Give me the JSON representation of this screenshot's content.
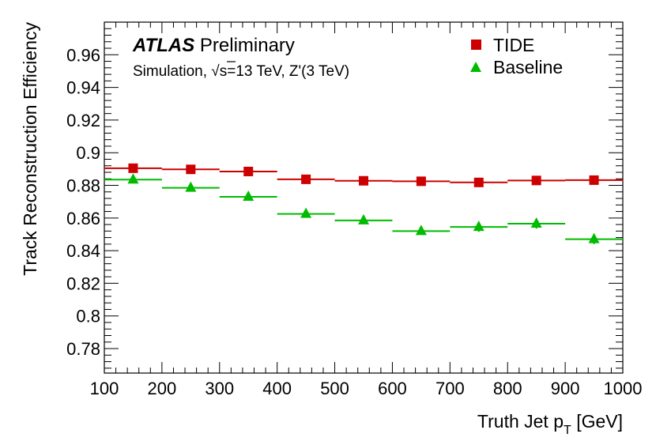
{
  "chart_data": {
    "type": "scatter",
    "xlabel": "Truth Jet p",
    "xlabel_sub": "T",
    "xlabel_unit": "[GeV]",
    "ylabel": "Track Reconstruction Efficiency",
    "xlim": [
      100,
      1000
    ],
    "ylim": [
      0.765,
      0.98
    ],
    "x_ticks": [
      100,
      200,
      300,
      400,
      500,
      600,
      700,
      800,
      900,
      1000
    ],
    "x_tick_labels": [
      "100",
      "200",
      "300",
      "400",
      "500",
      "600",
      "700",
      "800",
      "900",
      "1000"
    ],
    "y_ticks": [
      0.78,
      0.8,
      0.82,
      0.84,
      0.86,
      0.88,
      0.9,
      0.92,
      0.94,
      0.96
    ],
    "y_tick_labels": [
      "0.78",
      "0.8",
      "0.82",
      "0.84",
      "0.86",
      "0.88",
      "0.9",
      "0.92",
      "0.94",
      "0.96"
    ],
    "bins": [
      [
        100,
        200
      ],
      [
        200,
        300
      ],
      [
        300,
        400
      ],
      [
        400,
        500
      ],
      [
        500,
        600
      ],
      [
        600,
        700
      ],
      [
        700,
        800
      ],
      [
        800,
        900
      ],
      [
        900,
        1000
      ]
    ],
    "series": [
      {
        "name": "TIDE",
        "marker": "square",
        "color": "#cc0000",
        "x": [
          150,
          250,
          350,
          450,
          550,
          650,
          750,
          850,
          950
        ],
        "values": [
          0.8905,
          0.8898,
          0.8885,
          0.8837,
          0.8828,
          0.8825,
          0.8818,
          0.883,
          0.8832
        ],
        "errors": [
          0.001,
          0.001,
          0.001,
          0.001,
          0.001,
          0.001,
          0.001,
          0.001,
          0.001
        ]
      },
      {
        "name": "Baseline",
        "marker": "triangle",
        "color": "#00bb00",
        "x": [
          150,
          250,
          350,
          450,
          550,
          650,
          750,
          850,
          950
        ],
        "values": [
          0.8835,
          0.8785,
          0.873,
          0.8625,
          0.8585,
          0.852,
          0.8545,
          0.8565,
          0.847
        ],
        "errors": [
          0.002,
          0.002,
          0.002,
          0.002,
          0.002,
          0.002,
          0.003,
          0.003,
          0.003
        ]
      }
    ],
    "annotations": {
      "experiment": "ATLAS",
      "status": "Preliminary",
      "simulation_prefix": "Simulation, ",
      "sqrt_symbol": "√",
      "simulation_s": "s",
      "simulation_rest": "=13 TeV, Z'(3 TeV)"
    },
    "legend": {
      "position": "top-right",
      "entries": [
        "TIDE",
        "Baseline"
      ]
    }
  }
}
